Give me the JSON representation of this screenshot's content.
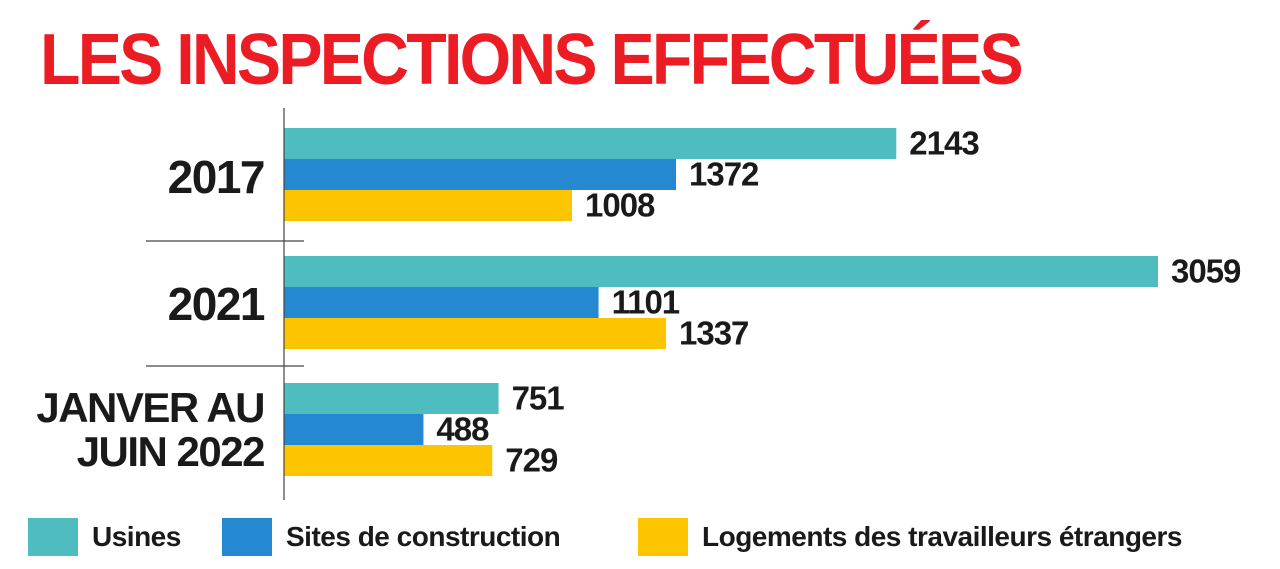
{
  "chart_data": {
    "type": "bar",
    "orientation": "horizontal",
    "title": "LES INSPECTIONS EFFECTUÉES",
    "categories": [
      [
        "2017"
      ],
      [
        "2021"
      ],
      [
        "JANVER AU",
        "JUIN 2022"
      ]
    ],
    "category_names": [
      "2017",
      "2021",
      "JANVER AU JUIN 2022"
    ],
    "series": [
      {
        "name": "Usines",
        "color": "#4fbdc0",
        "values": [
          2143,
          3059,
          751
        ]
      },
      {
        "name": "Sites de construction",
        "color": "#2489d1",
        "values": [
          1372,
          1101,
          488
        ]
      },
      {
        "name": "Logements des travailleurs étrangers",
        "color": "#fdc500",
        "values": [
          1008,
          1337,
          729
        ]
      }
    ],
    "xlim": [
      0,
      3059
    ],
    "data_labels": true,
    "grid": false,
    "legend_position": "bottom"
  }
}
